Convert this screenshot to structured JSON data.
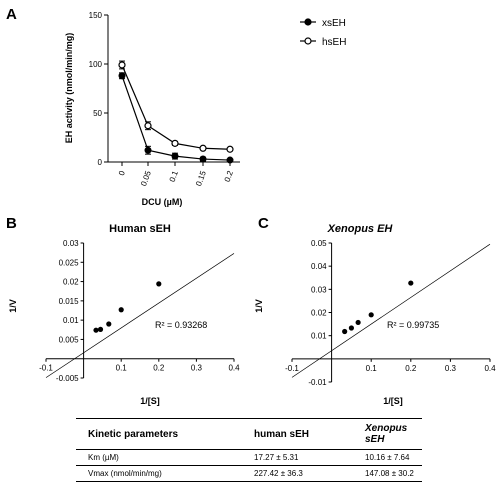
{
  "panels": {
    "a": {
      "letter": "A"
    },
    "b": {
      "letter": "B"
    },
    "c": {
      "letter": "C"
    }
  },
  "chart_data": [
    {
      "id": "A",
      "type": "line",
      "title": "",
      "xlabel": "DCU (µM)",
      "ylabel": "EH activity (nmol/min/mg)",
      "categories": [
        "0",
        "0.05",
        "0.1",
        "0.15",
        "0.2"
      ],
      "ylim": [
        0,
        150
      ],
      "yticks": [
        "0",
        "50",
        "100",
        "150"
      ],
      "legend_position": "top-right",
      "series": [
        {
          "name": "xsEH",
          "marker": "filled-circle",
          "values": [
            88,
            12,
            6,
            3,
            2
          ],
          "errors": [
            3,
            4,
            3,
            2,
            1
          ]
        },
        {
          "name": "hsEH",
          "marker": "open-circle",
          "values": [
            99,
            37,
            19,
            14,
            13
          ],
          "errors": [
            4,
            4,
            2,
            1,
            1
          ]
        }
      ]
    },
    {
      "id": "B",
      "type": "scatter",
      "title": "Human sEH",
      "xlabel": "1/[S]",
      "ylabel": "1/V",
      "xlim": [
        -0.1,
        0.4
      ],
      "ylim": [
        -0.005,
        0.03
      ],
      "xticks": [
        "-0.1",
        "0.1",
        "0.2",
        "0.3",
        "0.4"
      ],
      "yticks": [
        "-0.005",
        "0.005",
        "0.01",
        "0.015",
        "0.02",
        "0.025",
        "0.03"
      ],
      "points": [
        {
          "x": 0.033,
          "y": 0.0074
        },
        {
          "x": 0.045,
          "y": 0.0076
        },
        {
          "x": 0.067,
          "y": 0.009
        },
        {
          "x": 0.1,
          "y": 0.0127
        },
        {
          "x": 0.2,
          "y": 0.0194
        }
      ],
      "fit": {
        "x": [
          -0.1,
          0.4
        ],
        "y": [
          -0.0049,
          0.0273
        ]
      },
      "r2_label": "R² = 0.93268"
    },
    {
      "id": "C",
      "type": "scatter",
      "title": "Xenopus EH",
      "xlabel": "1/[S]",
      "ylabel": "1/V",
      "xlim": [
        -0.1,
        0.4
      ],
      "ylim": [
        -0.01,
        0.05
      ],
      "xticks": [
        "-0.1",
        "0.1",
        "0.2",
        "0.3",
        "0.4"
      ],
      "yticks": [
        "-0.01",
        "0.01",
        "0.02",
        "0.03",
        "0.04",
        "0.05"
      ],
      "points": [
        {
          "x": 0.033,
          "y": 0.0118
        },
        {
          "x": 0.05,
          "y": 0.0133
        },
        {
          "x": 0.067,
          "y": 0.0157
        },
        {
          "x": 0.1,
          "y": 0.019
        },
        {
          "x": 0.2,
          "y": 0.0327
        }
      ],
      "fit": {
        "x": [
          -0.1,
          0.4
        ],
        "y": [
          -0.008,
          0.0495
        ]
      },
      "r2_label": "R² = 0.99735"
    }
  ],
  "table": {
    "headers": [
      "Kinetic parameters",
      "human sEH",
      "Xenopus sEH"
    ],
    "rows": [
      {
        "label": "Km (µM)",
        "human": "17.27 ± 5.31",
        "xenopus": "10.16 ± 7.64"
      },
      {
        "label": "Vmax (nmol/min/mg)",
        "human": "227.42 ± 36.3",
        "xenopus": "147.08 ± 30.2"
      }
    ]
  }
}
